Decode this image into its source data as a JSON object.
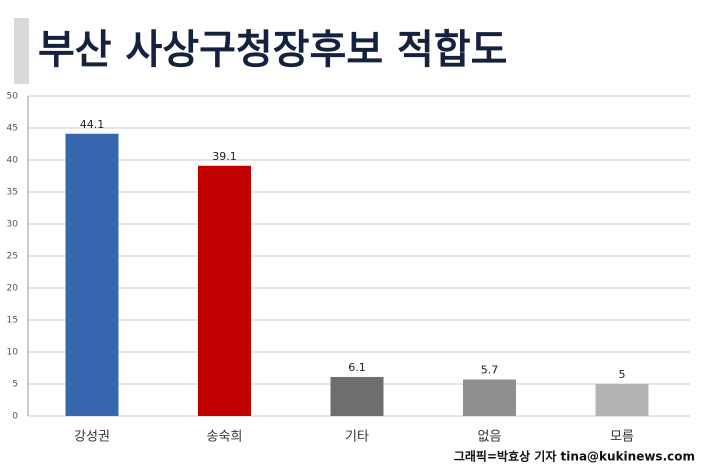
{
  "chart_data": {
    "type": "bar",
    "title": "부산 사상구청장후보 적합도",
    "categories": [
      "강성권",
      "송숙희",
      "기타",
      "없음",
      "모름"
    ],
    "values": [
      44.1,
      39.1,
      6.1,
      5.7,
      5
    ],
    "colors": [
      "#3566ae",
      "#c00000",
      "#6e6e6e",
      "#8f8f8f",
      "#b4b4b4"
    ],
    "ylim": [
      0,
      50
    ],
    "yticks": [
      0,
      5,
      10,
      15,
      20,
      25,
      30,
      35,
      40,
      45,
      50
    ],
    "grid": true,
    "source": "그래픽=박효상 기자 tina@kukinews.com"
  }
}
